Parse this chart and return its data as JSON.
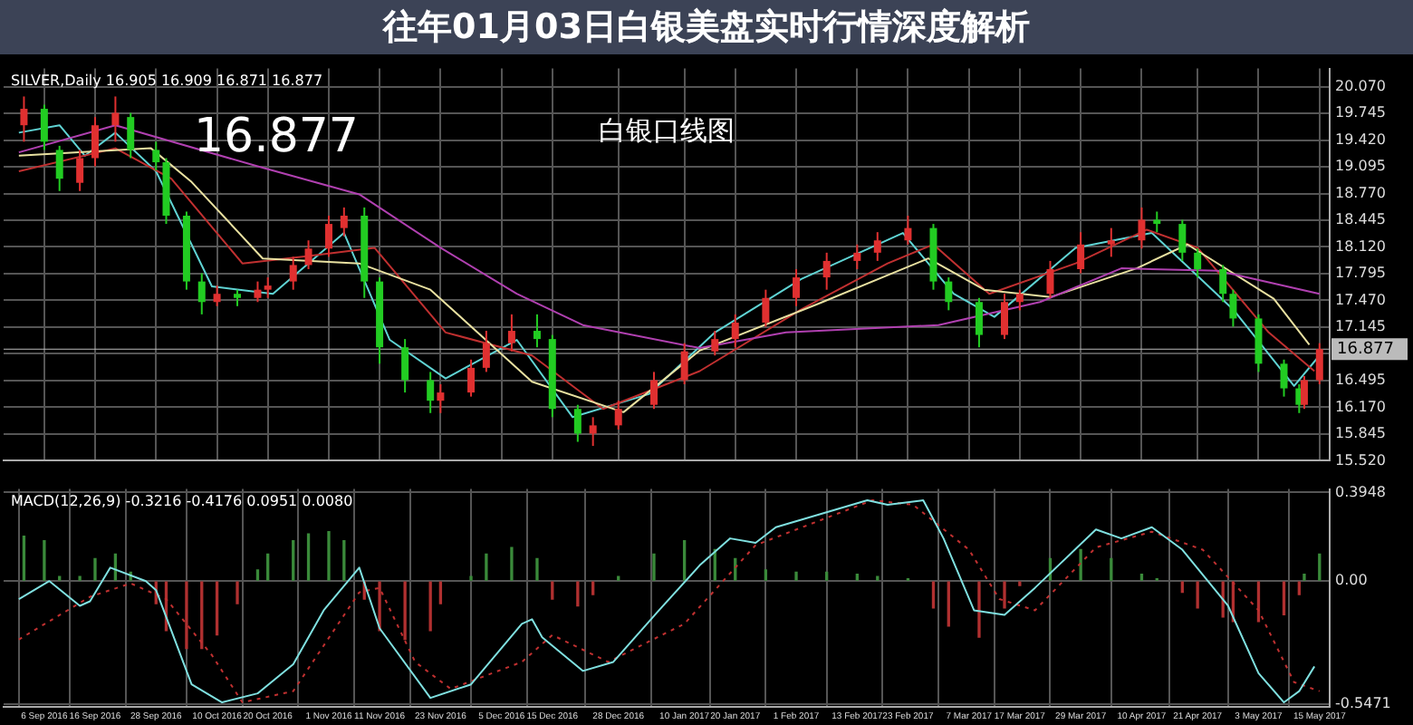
{
  "chart_data": [
    {
      "type": "candlestick",
      "title": "往年01月03日白银美盘实时行情深度解析",
      "subtitle": "白银口线图",
      "annotations": [
        "SILVER,Daily 16.905 16.909 16.871 16.877",
        "16.877"
      ],
      "x": [
        "2016-09-02",
        "2016-09-06",
        "2016-09-09",
        "2016-09-13",
        "2016-09-16",
        "2016-09-20",
        "2016-09-23",
        "2016-09-28",
        "2016-09-30",
        "2016-10-04",
        "2016-10-07",
        "2016-10-10",
        "2016-10-14",
        "2016-10-18",
        "2016-10-20",
        "2016-10-25",
        "2016-10-28",
        "2016-11-01",
        "2016-11-04",
        "2016-11-08",
        "2016-11-11",
        "2016-11-16",
        "2016-11-21",
        "2016-11-23",
        "2016-11-29",
        "2016-12-02",
        "2016-12-07",
        "2016-12-12",
        "2016-12-15",
        "2016-12-20",
        "2016-12-23",
        "2016-12-28",
        "2017-01-04",
        "2017-01-10",
        "2017-01-16",
        "2017-01-20",
        "2017-01-26",
        "2017-02-01",
        "2017-02-07",
        "2017-02-13",
        "2017-02-17",
        "2017-02-23",
        "2017-02-28",
        "2017-03-03",
        "2017-03-09",
        "2017-03-14",
        "2017-03-17",
        "2017-03-23",
        "2017-03-29",
        "2017-04-04",
        "2017-04-10",
        "2017-04-13",
        "2017-04-18",
        "2017-04-21",
        "2017-04-26",
        "2017-04-28",
        "2017-05-03",
        "2017-05-08",
        "2017-05-11",
        "2017-05-12",
        "2017-05-15"
      ],
      "ohlc": [
        [
          19.6,
          19.95,
          19.4,
          19.8
        ],
        [
          19.8,
          19.85,
          19.3,
          19.4
        ],
        [
          19.3,
          19.35,
          18.8,
          18.95
        ],
        [
          18.9,
          19.3,
          18.8,
          19.2
        ],
        [
          19.2,
          19.7,
          19.1,
          19.6
        ],
        [
          19.6,
          19.95,
          19.4,
          19.75
        ],
        [
          19.7,
          19.75,
          19.2,
          19.3
        ],
        [
          19.3,
          19.4,
          19.05,
          19.15
        ],
        [
          19.15,
          19.2,
          18.4,
          18.5
        ],
        [
          18.5,
          18.55,
          17.6,
          17.7
        ],
        [
          17.7,
          17.8,
          17.3,
          17.45
        ],
        [
          17.45,
          17.65,
          17.4,
          17.55
        ],
        [
          17.55,
          17.6,
          17.4,
          17.5
        ],
        [
          17.5,
          17.7,
          17.45,
          17.6
        ],
        [
          17.6,
          17.75,
          17.5,
          17.65
        ],
        [
          17.7,
          18.0,
          17.6,
          17.9
        ],
        [
          17.9,
          18.2,
          17.85,
          18.1
        ],
        [
          18.1,
          18.5,
          18.0,
          18.4
        ],
        [
          18.35,
          18.6,
          18.25,
          18.5
        ],
        [
          18.5,
          18.6,
          17.5,
          17.7
        ],
        [
          17.7,
          17.75,
          16.7,
          16.9
        ],
        [
          16.9,
          17.0,
          16.35,
          16.5
        ],
        [
          16.5,
          16.6,
          16.1,
          16.25
        ],
        [
          16.25,
          16.45,
          16.1,
          16.35
        ],
        [
          16.35,
          16.75,
          16.3,
          16.65
        ],
        [
          16.65,
          17.1,
          16.6,
          16.95
        ],
        [
          16.95,
          17.3,
          16.85,
          17.1
        ],
        [
          17.1,
          17.3,
          16.9,
          17.0
        ],
        [
          17.0,
          17.05,
          16.05,
          16.15
        ],
        [
          16.15,
          16.2,
          15.75,
          15.85
        ],
        [
          15.85,
          16.05,
          15.7,
          15.95
        ],
        [
          15.95,
          16.25,
          15.9,
          16.15
        ],
        [
          16.2,
          16.6,
          16.15,
          16.5
        ],
        [
          16.5,
          16.95,
          16.45,
          16.85
        ],
        [
          16.85,
          17.1,
          16.8,
          17.0
        ],
        [
          17.0,
          17.3,
          16.9,
          17.2
        ],
        [
          17.2,
          17.6,
          17.15,
          17.5
        ],
        [
          17.5,
          17.85,
          17.4,
          17.75
        ],
        [
          17.75,
          18.05,
          17.6,
          17.95
        ],
        [
          17.95,
          18.15,
          17.85,
          18.05
        ],
        [
          18.05,
          18.3,
          17.95,
          18.2
        ],
        [
          18.2,
          18.5,
          18.15,
          18.35
        ],
        [
          18.35,
          18.4,
          17.6,
          17.7
        ],
        [
          17.7,
          17.75,
          17.35,
          17.45
        ],
        [
          17.45,
          17.5,
          16.9,
          17.05
        ],
        [
          17.05,
          17.55,
          17.0,
          17.45
        ],
        [
          17.45,
          17.6,
          17.35,
          17.55
        ],
        [
          17.55,
          17.95,
          17.5,
          17.85
        ],
        [
          17.85,
          18.3,
          17.8,
          18.15
        ],
        [
          18.15,
          18.35,
          18.0,
          18.2
        ],
        [
          18.2,
          18.6,
          18.1,
          18.45
        ],
        [
          18.45,
          18.55,
          18.3,
          18.4
        ],
        [
          18.4,
          18.45,
          17.95,
          18.05
        ],
        [
          18.05,
          18.1,
          17.75,
          17.85
        ],
        [
          17.85,
          17.9,
          17.45,
          17.55
        ],
        [
          17.55,
          17.6,
          17.15,
          17.25
        ],
        [
          17.25,
          17.3,
          16.6,
          16.7
        ],
        [
          16.7,
          16.75,
          16.3,
          16.4
        ],
        [
          16.4,
          16.45,
          16.1,
          16.2
        ],
        [
          16.2,
          16.55,
          16.15,
          16.5
        ],
        [
          16.5,
          16.95,
          16.45,
          16.877
        ]
      ],
      "colors": [
        "#e03030",
        "#22cc22",
        "#22cc22",
        "#e03030",
        "#e03030",
        "#e03030",
        "#22cc22",
        "#22cc22",
        "#22cc22",
        "#22cc22",
        "#22cc22",
        "#e03030",
        "#22cc22",
        "#e03030",
        "#e03030",
        "#e03030",
        "#e03030",
        "#e03030",
        "#e03030",
        "#22cc22",
        "#22cc22",
        "#22cc22",
        "#22cc22",
        "#e03030",
        "#e03030",
        "#e03030",
        "#e03030",
        "#22cc22",
        "#22cc22",
        "#22cc22",
        "#e03030",
        "#e03030",
        "#e03030",
        "#e03030",
        "#e03030",
        "#e03030",
        "#e03030",
        "#e03030",
        "#e03030",
        "#e03030",
        "#e03030",
        "#e03030",
        "#22cc22",
        "#22cc22",
        "#22cc22",
        "#e03030",
        "#e03030",
        "#e03030",
        "#e03030",
        "#e03030",
        "#e03030",
        "#22cc22",
        "#22cc22",
        "#22cc22",
        "#22cc22",
        "#22cc22",
        "#22cc22",
        "#22cc22",
        "#22cc22",
        "#e03030",
        "#e03030"
      ],
      "series": [
        {
          "type": "line",
          "color": "#b040b0",
          "x": [
            "2016-09-01",
            "2016-09-20",
            "2016-10-18",
            "2016-11-07",
            "2016-11-23",
            "2016-12-08",
            "2016-12-21",
            "2017-01-13",
            "2017-01-30",
            "2017-03-01",
            "2017-03-21",
            "2017-04-06",
            "2017-04-25",
            "2017-05-15"
          ],
          "values": [
            19.27,
            19.6,
            19.1,
            18.76,
            18.11,
            17.55,
            17.17,
            16.89,
            17.08,
            17.17,
            17.45,
            17.86,
            17.83,
            17.55
          ]
        },
        {
          "type": "line",
          "color": "#e8e0a0",
          "x": [
            "2016-09-01",
            "2016-09-27",
            "2016-10-05",
            "2016-10-19",
            "2016-11-07",
            "2016-11-21",
            "2016-12-11",
            "2016-12-29",
            "2017-01-13",
            "2017-02-05",
            "2017-02-27",
            "2017-03-10",
            "2017-03-23",
            "2017-04-09",
            "2017-04-19",
            "2017-05-06",
            "2017-05-13"
          ],
          "values": [
            19.23,
            19.32,
            18.91,
            17.98,
            17.92,
            17.6,
            16.48,
            16.11,
            16.86,
            17.42,
            17.98,
            17.6,
            17.51,
            17.86,
            18.15,
            17.49,
            16.93
          ]
        },
        {
          "type": "line",
          "color": "#c03030",
          "x": [
            "2016-09-01",
            "2016-09-20",
            "2016-10-01",
            "2016-10-15",
            "2016-10-28",
            "2016-11-10",
            "2016-11-24",
            "2016-12-11",
            "2016-12-25",
            "2017-01-13",
            "2017-02-02",
            "2017-02-19",
            "2017-02-28",
            "2017-03-11",
            "2017-03-28",
            "2017-04-11",
            "2017-04-21",
            "2017-05-05",
            "2017-05-14"
          ],
          "values": [
            19.04,
            19.32,
            18.95,
            17.92,
            18.01,
            18.11,
            17.08,
            16.8,
            16.15,
            16.61,
            17.36,
            17.92,
            18.15,
            17.55,
            17.92,
            18.33,
            18.11,
            17.08,
            16.61
          ]
        },
        {
          "type": "line",
          "color": "#5fd3d3",
          "x": [
            "2016-09-01",
            "2016-09-09",
            "2016-09-14",
            "2016-09-20",
            "2016-09-28",
            "2016-10-09",
            "2016-10-21",
            "2016-11-04",
            "2016-11-13",
            "2016-11-24",
            "2016-12-08",
            "2016-12-19",
            "2017-01-03",
            "2017-01-16",
            "2017-02-02",
            "2017-02-22",
            "2017-03-04",
            "2017-03-12",
            "2017-03-28",
            "2017-04-12",
            "2017-04-28",
            "2017-05-10",
            "2017-05-15"
          ],
          "values": [
            19.51,
            19.6,
            19.23,
            19.51,
            19.04,
            17.64,
            17.55,
            18.29,
            16.99,
            16.52,
            16.99,
            16.05,
            16.33,
            17.08,
            17.73,
            18.29,
            17.55,
            17.27,
            18.11,
            18.29,
            17.36,
            16.43,
            16.8
          ]
        }
      ],
      "ref_lines": [
        {
          "axis": "y",
          "value": 16.877,
          "label": "16.877",
          "color": "#bbbbbb"
        }
      ],
      "xlim": [
        "2016-08-29",
        "2017-05-17"
      ],
      "xticks": [
        {
          "value": "2016-09-06",
          "label": null
        },
        {
          "value": "2016-09-16",
          "label": null
        },
        {
          "value": "2016-09-28",
          "label": null
        },
        {
          "value": "2016-10-10",
          "label": null
        },
        {
          "value": "2016-10-20",
          "label": null
        },
        {
          "value": "2016-11-01",
          "label": null
        },
        {
          "value": "2016-11-11",
          "label": null
        },
        {
          "value": "2016-11-23",
          "label": null
        },
        {
          "value": "2016-12-05",
          "label": null
        },
        {
          "value": "2016-12-15",
          "label": null
        },
        {
          "value": "2016-12-28",
          "label": null
        },
        {
          "value": "2017-01-10",
          "label": null
        },
        {
          "value": "2017-01-20",
          "label": null
        },
        {
          "value": "2017-02-01",
          "label": null
        },
        {
          "value": "2017-02-13",
          "label": null
        },
        {
          "value": "2017-02-23",
          "label": null
        },
        {
          "value": "2017-03-07",
          "label": null
        },
        {
          "value": "2017-03-17",
          "label": null
        },
        {
          "value": "2017-03-29",
          "label": null
        },
        {
          "value": "2017-04-10",
          "label": null
        },
        {
          "value": "2017-04-21",
          "label": null
        },
        {
          "value": "2017-05-03",
          "label": null
        },
        {
          "value": "2017-05-15",
          "label": null
        }
      ],
      "ylim": [
        15.52,
        20.29
      ],
      "yticks": [
        {
          "value": 15.52,
          "label": "15.520"
        },
        15.845,
        {
          "value": 16.17,
          "label": "16.170"
        },
        16.495,
        {
          "value": 16.82,
          "label": null
        },
        17.145,
        {
          "value": 17.47,
          "label": "17.470"
        },
        17.795,
        {
          "value": 18.12,
          "label": "18.120"
        },
        18.445,
        {
          "value": 18.77,
          "label": "18.770"
        },
        19.095,
        {
          "value": 19.42,
          "label": "19.420"
        },
        19.745,
        {
          "value": 20.07,
          "label": "20.070"
        }
      ],
      "tick_labels": "y",
      "grid": true,
      "legend": false
    },
    {
      "type": "bar",
      "title": "MACD(12,26,9) -0.3216 -0.4176 0.0951 0.0080",
      "x": [
        "2016-09-02",
        "2016-09-06",
        "2016-09-09",
        "2016-09-13",
        "2016-09-16",
        "2016-09-20",
        "2016-09-23",
        "2016-09-28",
        "2016-09-30",
        "2016-10-04",
        "2016-10-07",
        "2016-10-10",
        "2016-10-14",
        "2016-10-18",
        "2016-10-20",
        "2016-10-25",
        "2016-10-28",
        "2016-11-01",
        "2016-11-04",
        "2016-11-08",
        "2016-11-11",
        "2016-11-16",
        "2016-11-21",
        "2016-11-23",
        "2016-11-29",
        "2016-12-02",
        "2016-12-07",
        "2016-12-12",
        "2016-12-15",
        "2016-12-20",
        "2016-12-23",
        "2016-12-28",
        "2017-01-04",
        "2017-01-10",
        "2017-01-16",
        "2017-01-20",
        "2017-01-26",
        "2017-02-01",
        "2017-02-07",
        "2017-02-13",
        "2017-02-17",
        "2017-02-23",
        "2017-02-28",
        "2017-03-03",
        "2017-03-09",
        "2017-03-14",
        "2017-03-17",
        "2017-03-23",
        "2017-03-29",
        "2017-04-04",
        "2017-04-10",
        "2017-04-13",
        "2017-04-18",
        "2017-04-21",
        "2017-04-26",
        "2017-04-28",
        "2017-05-03",
        "2017-05-08",
        "2017-05-11",
        "2017-05-12",
        "2017-05-15"
      ],
      "series": [
        {
          "type": "bar",
          "values": [
            0.2,
            0.18,
            0.02,
            0.02,
            0.1,
            0.12,
            0.04,
            -0.1,
            -0.22,
            -0.3,
            -0.3,
            -0.24,
            -0.1,
            0.05,
            0.12,
            0.18,
            0.21,
            0.22,
            0.18,
            -0.08,
            -0.22,
            -0.26,
            -0.22,
            -0.1,
            0.02,
            0.12,
            0.15,
            0.1,
            -0.08,
            -0.11,
            -0.06,
            0.02,
            0.12,
            0.18,
            0.14,
            0.1,
            0.05,
            0.04,
            0.04,
            0.03,
            0.02,
            0.01,
            -0.12,
            -0.2,
            -0.25,
            -0.12,
            -0.02,
            0.1,
            0.14,
            0.1,
            0.03,
            0.01,
            -0.05,
            -0.12,
            -0.16,
            -0.18,
            -0.18,
            -0.15,
            -0.06,
            0.03,
            0.12
          ],
          "colors": [
            "#3a8a3a",
            "#3a8a3a",
            "#3a8a3a",
            "#3a8a3a",
            "#3a8a3a",
            "#3a8a3a",
            "#3a8a3a",
            "#b03030",
            "#b03030",
            "#b03030",
            "#b03030",
            "#b03030",
            "#b03030",
            "#3a8a3a",
            "#3a8a3a",
            "#3a8a3a",
            "#3a8a3a",
            "#3a8a3a",
            "#3a8a3a",
            "#b03030",
            "#b03030",
            "#b03030",
            "#b03030",
            "#b03030",
            "#3a8a3a",
            "#3a8a3a",
            "#3a8a3a",
            "#3a8a3a",
            "#b03030",
            "#b03030",
            "#b03030",
            "#3a8a3a",
            "#3a8a3a",
            "#3a8a3a",
            "#3a8a3a",
            "#3a8a3a",
            "#3a8a3a",
            "#3a8a3a",
            "#3a8a3a",
            "#3a8a3a",
            "#3a8a3a",
            "#3a8a3a",
            "#b03030",
            "#b03030",
            "#b03030",
            "#b03030",
            "#b03030",
            "#3a8a3a",
            "#3a8a3a",
            "#3a8a3a",
            "#3a8a3a",
            "#3a8a3a",
            "#b03030",
            "#b03030",
            "#b03030",
            "#b03030",
            "#b03030",
            "#b03030",
            "#b03030",
            "#3a8a3a",
            "#3a8a3a"
          ]
        },
        {
          "type": "line",
          "color": "#7fe0e0",
          "x": [
            "2016-09-01",
            "2016-09-07",
            "2016-09-13",
            "2016-09-15",
            "2016-09-19",
            "2016-09-26",
            "2016-09-28",
            "2016-10-05",
            "2016-10-11",
            "2016-10-18",
            "2016-10-25",
            "2016-10-31",
            "2016-11-07",
            "2016-11-11",
            "2016-11-21",
            "2016-11-29",
            "2016-12-09",
            "2016-12-11",
            "2016-12-13",
            "2016-12-21",
            "2016-12-27",
            "2017-01-05",
            "2017-01-13",
            "2017-01-19",
            "2017-01-24",
            "2017-01-28",
            "2017-02-15",
            "2017-02-19",
            "2017-02-26",
            "2017-03-02",
            "2017-03-08",
            "2017-03-14",
            "2017-03-20",
            "2017-04-01",
            "2017-04-06",
            "2017-04-12",
            "2017-04-18",
            "2017-04-27",
            "2017-05-03",
            "2017-05-08",
            "2017-05-11",
            "2017-05-14"
          ],
          "values": [
            -0.08,
            0.0,
            -0.11,
            -0.09,
            0.06,
            0.0,
            -0.04,
            -0.46,
            -0.54,
            -0.5,
            -0.37,
            -0.13,
            0.06,
            -0.21,
            -0.52,
            -0.46,
            -0.19,
            -0.17,
            -0.25,
            -0.4,
            -0.36,
            -0.13,
            0.07,
            0.19,
            0.17,
            0.24,
            0.36,
            0.34,
            0.36,
            0.19,
            -0.13,
            -0.15,
            -0.03,
            0.23,
            0.19,
            0.24,
            0.14,
            -0.11,
            -0.41,
            -0.54,
            -0.49,
            -0.38
          ]
        },
        {
          "type": "line",
          "color": "#c03030",
          "line_style": "dotted",
          "x": [
            "2016-09-01",
            "2016-09-15",
            "2016-09-23",
            "2016-09-30",
            "2016-10-09",
            "2016-10-15",
            "2016-10-25",
            "2016-11-07",
            "2016-11-11",
            "2016-11-18",
            "2016-11-25",
            "2016-12-09",
            "2016-12-15",
            "2016-12-26",
            "2017-01-10",
            "2017-01-24",
            "2017-02-16",
            "2017-02-24",
            "2017-03-07",
            "2017-03-13",
            "2017-03-20",
            "2017-04-01",
            "2017-04-12",
            "2017-04-22",
            "2017-05-03",
            "2017-05-10",
            "2017-05-15"
          ],
          "values": [
            -0.26,
            -0.07,
            -0.01,
            -0.08,
            -0.33,
            -0.54,
            -0.49,
            -0.05,
            -0.03,
            -0.36,
            -0.48,
            -0.36,
            -0.24,
            -0.36,
            -0.19,
            0.16,
            0.36,
            0.34,
            0.14,
            -0.08,
            -0.13,
            0.15,
            0.22,
            0.14,
            -0.13,
            -0.45,
            -0.49
          ]
        }
      ],
      "xlim": [
        "2016-08-29",
        "2017-05-17"
      ],
      "xticks": [
        {
          "value": "2016-09-06",
          "label": "6 Sep 2016"
        },
        {
          "value": "2016-09-16",
          "label": "16 Sep 2016"
        },
        {
          "value": "2016-09-28",
          "label": "28 Sep 2016"
        },
        {
          "value": "2016-10-10",
          "label": "10 Oct 2016"
        },
        {
          "value": "2016-10-20",
          "label": "20 Oct 2016"
        },
        {
          "value": "2016-11-01",
          "label": "1 Nov 2016"
        },
        {
          "value": "2016-11-11",
          "label": "11 Nov 2016"
        },
        {
          "value": "2016-11-23",
          "label": "23 Nov 2016"
        },
        {
          "value": "2016-12-05",
          "label": "5 Dec 2016"
        },
        {
          "value": "2016-12-15",
          "label": "15 Dec 2016"
        },
        {
          "value": "2016-12-28",
          "label": "28 Dec 2016"
        },
        {
          "value": "2017-01-10",
          "label": "10 Jan 2017"
        },
        {
          "value": "2017-01-20",
          "label": "20 Jan 2017"
        },
        {
          "value": "2017-02-01",
          "label": "1 Feb 2017"
        },
        {
          "value": "2017-02-13",
          "label": "13 Feb 2017"
        },
        {
          "value": "2017-02-23",
          "label": "23 Feb 2017"
        },
        {
          "value": "2017-03-07",
          "label": "7 Mar 2017"
        },
        {
          "value": "2017-03-17",
          "label": "17 Mar 2017"
        },
        {
          "value": "2017-03-29",
          "label": "29 Mar 2017"
        },
        {
          "value": "2017-04-10",
          "label": "10 Apr 2017"
        },
        {
          "value": "2017-04-21",
          "label": "21 Apr 2017"
        },
        {
          "value": "2017-05-03",
          "label": "3 May 2017"
        },
        {
          "value": "2017-05-15",
          "label": "15 May 2017"
        }
      ],
      "ylim": [
        -0.56,
        0.41
      ],
      "yticks": [
        -0.5471,
        {
          "value": 0,
          "label": "0.00"
        },
        0.3948
      ],
      "grid": true,
      "legend": false
    }
  ]
}
